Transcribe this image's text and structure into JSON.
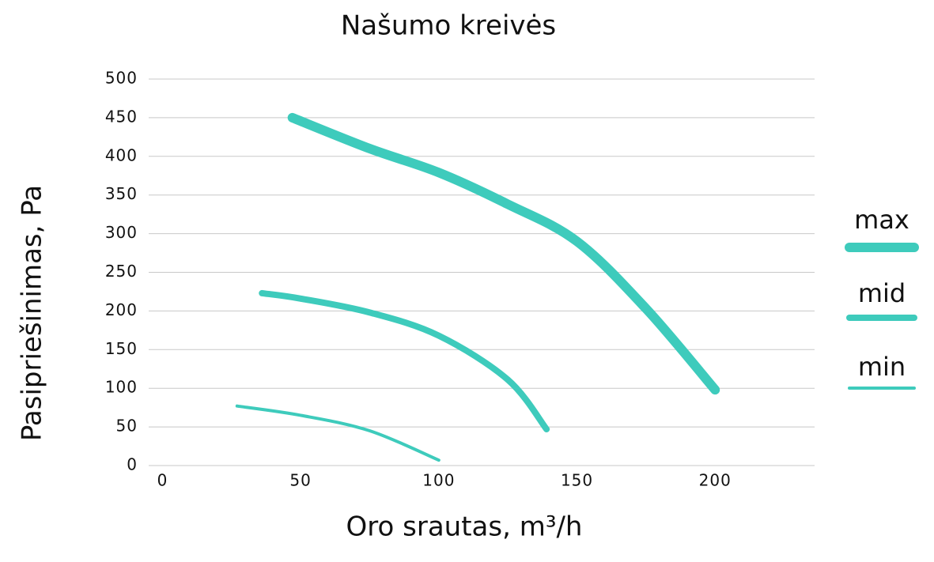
{
  "chart_data": {
    "type": "line",
    "title": "Našumo kreivės",
    "x_label": "Oro srautas, m³/h",
    "y_label": "Pasipriešinimas, Pa",
    "xlim": [
      -5,
      236
    ],
    "xticks": [
      0,
      50,
      100,
      150,
      200
    ],
    "ylim": [
      0,
      500
    ],
    "yticks": [
      0,
      50,
      100,
      150,
      200,
      250,
      300,
      350,
      400,
      450,
      500
    ],
    "grid": true,
    "legend": "right",
    "series": [
      {
        "name": "max",
        "color": "#3ecbbc",
        "x": [
          47,
          75,
          100,
          125,
          150,
          175,
          200
        ],
        "values": [
          450,
          410,
          379,
          338,
          290,
          203,
          98
        ]
      },
      {
        "name": "mid",
        "color": "#3ecbbc",
        "x": [
          36,
          50,
          75,
          100,
          125,
          139
        ],
        "values": [
          223,
          216,
          198,
          168,
          111,
          47
        ]
      },
      {
        "name": "min",
        "color": "#3ecbbc",
        "x": [
          27,
          50,
          75,
          100
        ],
        "values": [
          77,
          65,
          45,
          7
        ]
      }
    ]
  }
}
